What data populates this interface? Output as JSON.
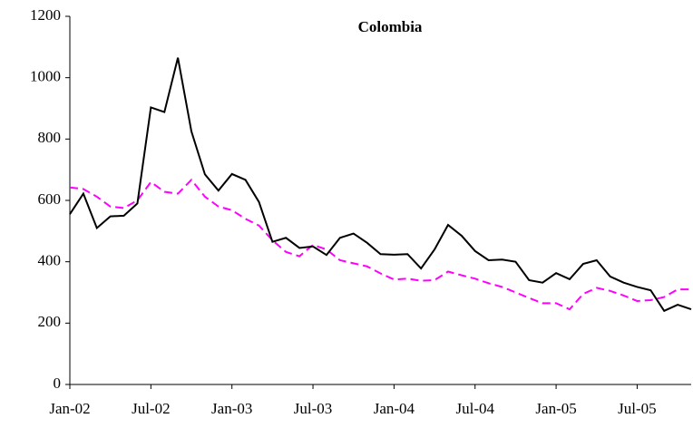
{
  "chart_data": {
    "type": "line",
    "title": "Colombia",
    "categories": [
      "Jan-02",
      null,
      null,
      null,
      null,
      null,
      "Jul-02",
      null,
      null,
      null,
      null,
      null,
      "Jan-03",
      null,
      null,
      null,
      null,
      null,
      "Jul-03",
      null,
      null,
      null,
      null,
      null,
      "Jan-04",
      null,
      null,
      null,
      null,
      null,
      "Jul-04",
      null,
      null,
      null,
      null,
      null,
      "Jan-05",
      null,
      null,
      null,
      null,
      null,
      "Jul-05",
      null,
      null,
      null,
      null
    ],
    "series": [
      {
        "color": "#000000",
        "dash": "solid",
        "values": [
          555,
          622,
          510,
          548,
          550,
          590,
          903,
          888,
          1065,
          825,
          685,
          632,
          686,
          667,
          595,
          465,
          478,
          445,
          450,
          422,
          478,
          492,
          462,
          425,
          423,
          425,
          378,
          440,
          520,
          485,
          435,
          405,
          407,
          400,
          340,
          332,
          363,
          343,
          393,
          405,
          352,
          332,
          318,
          307,
          240,
          260,
          245
        ]
      },
      {
        "color": "#ff00ff",
        "dash": "dashed",
        "values": [
          642,
          637,
          612,
          580,
          575,
          600,
          660,
          628,
          622,
          667,
          612,
          580,
          568,
          540,
          518,
          470,
          432,
          418,
          455,
          440,
          405,
          395,
          385,
          362,
          342,
          345,
          338,
          340,
          368,
          356,
          345,
          330,
          318,
          300,
          282,
          265,
          265,
          245,
          295,
          315,
          305,
          290,
          272,
          275,
          285,
          310,
          310
        ]
      }
    ],
    "ylim": [
      0,
      1200
    ],
    "yticks": [
      0,
      200,
      400,
      600,
      800,
      1000,
      1200
    ],
    "grid": false
  }
}
